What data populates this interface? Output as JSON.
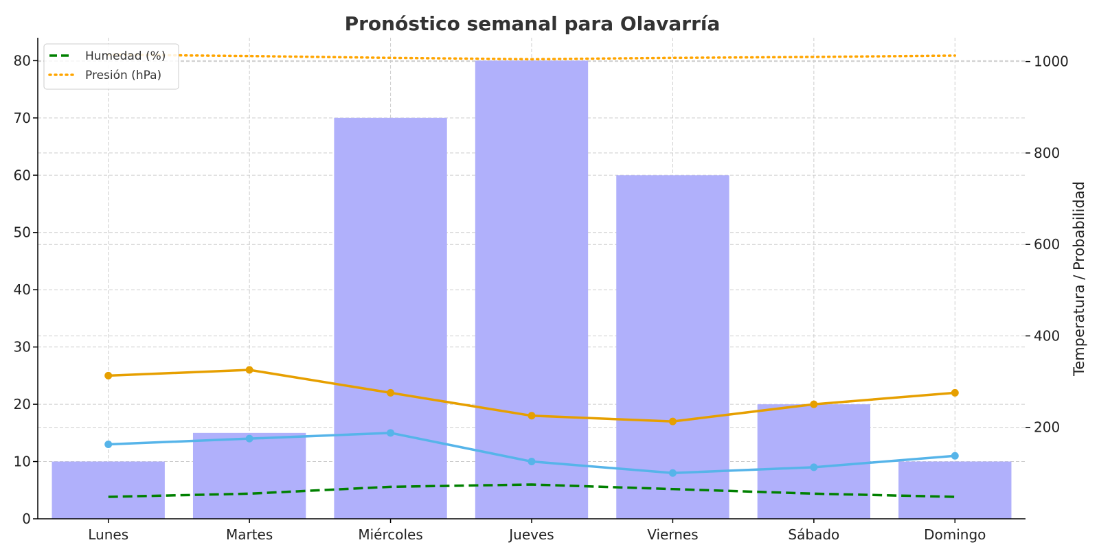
{
  "chart_data": {
    "type": "bar",
    "title": "Pronóstico semanal para Olavarría",
    "categories": [
      "Lunes",
      "Martes",
      "Miércoles",
      "Jueves",
      "Viernes",
      "Sábado",
      "Domingo"
    ],
    "xlabel": "",
    "ylabel": "",
    "y2label": "Temperatura / Probabilidad",
    "ylim": [
      0,
      84
    ],
    "y2lim": [
      0,
      1052
    ],
    "yticks": [
      0,
      10,
      20,
      30,
      40,
      50,
      60,
      70,
      80
    ],
    "y2ticks": [
      200,
      400,
      600,
      800,
      1000
    ],
    "grid": true,
    "legend_position": "top-left",
    "bars": {
      "axis": "left",
      "color": "#b0b0fb",
      "values": [
        10,
        15,
        70,
        80,
        60,
        20,
        10
      ]
    },
    "series": [
      {
        "axis": "left",
        "style": "solid",
        "marker": true,
        "color": "#e69f00",
        "values": [
          25,
          26,
          22,
          18,
          17,
          20,
          22
        ]
      },
      {
        "axis": "left",
        "style": "solid",
        "marker": true,
        "color": "#56b4e9",
        "values": [
          13,
          14,
          15,
          10,
          8,
          9,
          11
        ]
      },
      {
        "name": "Humedad (%)",
        "axis": "right",
        "style": "dashed",
        "marker": false,
        "color": "#008000",
        "values": [
          48,
          55,
          70,
          75,
          65,
          55,
          48
        ]
      },
      {
        "name": "Presión (hPa)",
        "axis": "right",
        "style": "dotted",
        "marker": false,
        "color": "#ffa500",
        "values": [
          1015,
          1012,
          1008,
          1005,
          1008,
          1010,
          1013
        ]
      }
    ]
  }
}
